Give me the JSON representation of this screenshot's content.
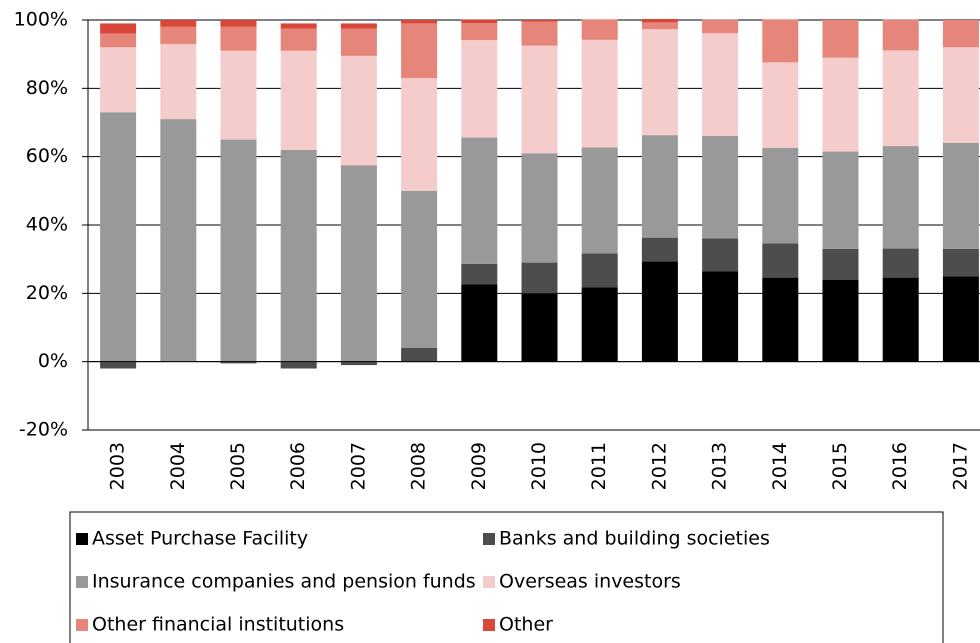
{
  "chart_data": {
    "type": "bar",
    "stacked": true,
    "categories": [
      "2003",
      "2004",
      "2005",
      "2006",
      "2007",
      "2008",
      "2009",
      "2010",
      "2011",
      "2012",
      "2013",
      "2014",
      "2015",
      "2016",
      "2017"
    ],
    "series": [
      {
        "name": "Asset Purchase Facility",
        "color": "#000000",
        "values": [
          0,
          0,
          0,
          0,
          0,
          0,
          22.6,
          20,
          21.7,
          29.3,
          26.4,
          24.6,
          24,
          24.6,
          25
        ]
      },
      {
        "name": "Banks and building societies",
        "color": "#4d4d4d",
        "values": [
          -2,
          0,
          -0.5,
          -2,
          -1,
          4,
          6,
          9,
          10,
          7,
          9.7,
          10,
          9,
          8.5,
          8
        ]
      },
      {
        "name": "Insurance companies and pension funds",
        "color": "#999999",
        "values": [
          73,
          71,
          65,
          62,
          57.5,
          46,
          37,
          32,
          31,
          30,
          30,
          28,
          28.5,
          30,
          31
        ]
      },
      {
        "name": "Overseas investors",
        "color": "#f4cccc",
        "values": [
          19,
          22,
          26,
          29,
          32,
          33,
          28.5,
          31.5,
          31.5,
          31,
          30,
          25,
          27.5,
          28,
          28
        ]
      },
      {
        "name": "Other financial institutions",
        "color": "#e6857a",
        "values": [
          4,
          5,
          7,
          6.5,
          8,
          16,
          5,
          7,
          6,
          2,
          4,
          12.6,
          11,
          9,
          8
        ]
      },
      {
        "name": "Other",
        "color": "#d9473b",
        "values": [
          3,
          2,
          2,
          1.5,
          1.5,
          1,
          1,
          0.5,
          0,
          1,
          0,
          0,
          0,
          0,
          0
        ]
      }
    ],
    "ylim": [
      -20,
      100
    ],
    "yticks": [
      {
        "value": -20,
        "label": "-20%"
      },
      {
        "value": 0,
        "label": "0%"
      },
      {
        "value": 20,
        "label": "20%"
      },
      {
        "value": 40,
        "label": "40%"
      },
      {
        "value": 60,
        "label": "60%"
      },
      {
        "value": 80,
        "label": "80%"
      },
      {
        "value": 100,
        "label": "100%"
      }
    ],
    "grid": true
  }
}
